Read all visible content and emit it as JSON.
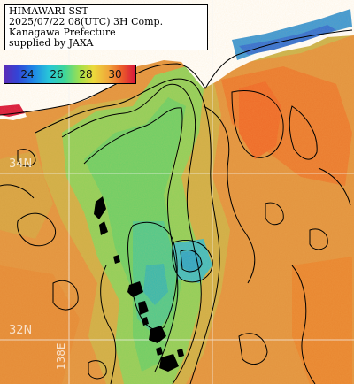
{
  "title": {
    "line1": "HIMAWARI SST",
    "line2": "2025/07/22 08(UTC) 3H Comp.",
    "line3": "Kanagawa Prefecture",
    "line4": "supplied by JAXA"
  },
  "colorbar": {
    "ticks": [
      "24",
      "26",
      "28",
      "30"
    ],
    "colors": [
      "#5a2db8",
      "#1f86e6",
      "#3ed69a",
      "#ecd93c",
      "#f0a33a",
      "#d8153c"
    ]
  },
  "grid": {
    "lat_labels": [
      "34N",
      "32N"
    ],
    "lon_labels": [
      "138E"
    ]
  },
  "colors": {
    "sea_warm": "#e2933e",
    "sea_hot": "#ea7a2e",
    "sea_mild": "#c8b04a",
    "sea_cool": "#6ccf66",
    "sea_cold": "#2aa6c8",
    "land": "#ffffff",
    "cloud_mask": "#000000",
    "contour": "#000000",
    "gridline": "#f4f4f4"
  }
}
